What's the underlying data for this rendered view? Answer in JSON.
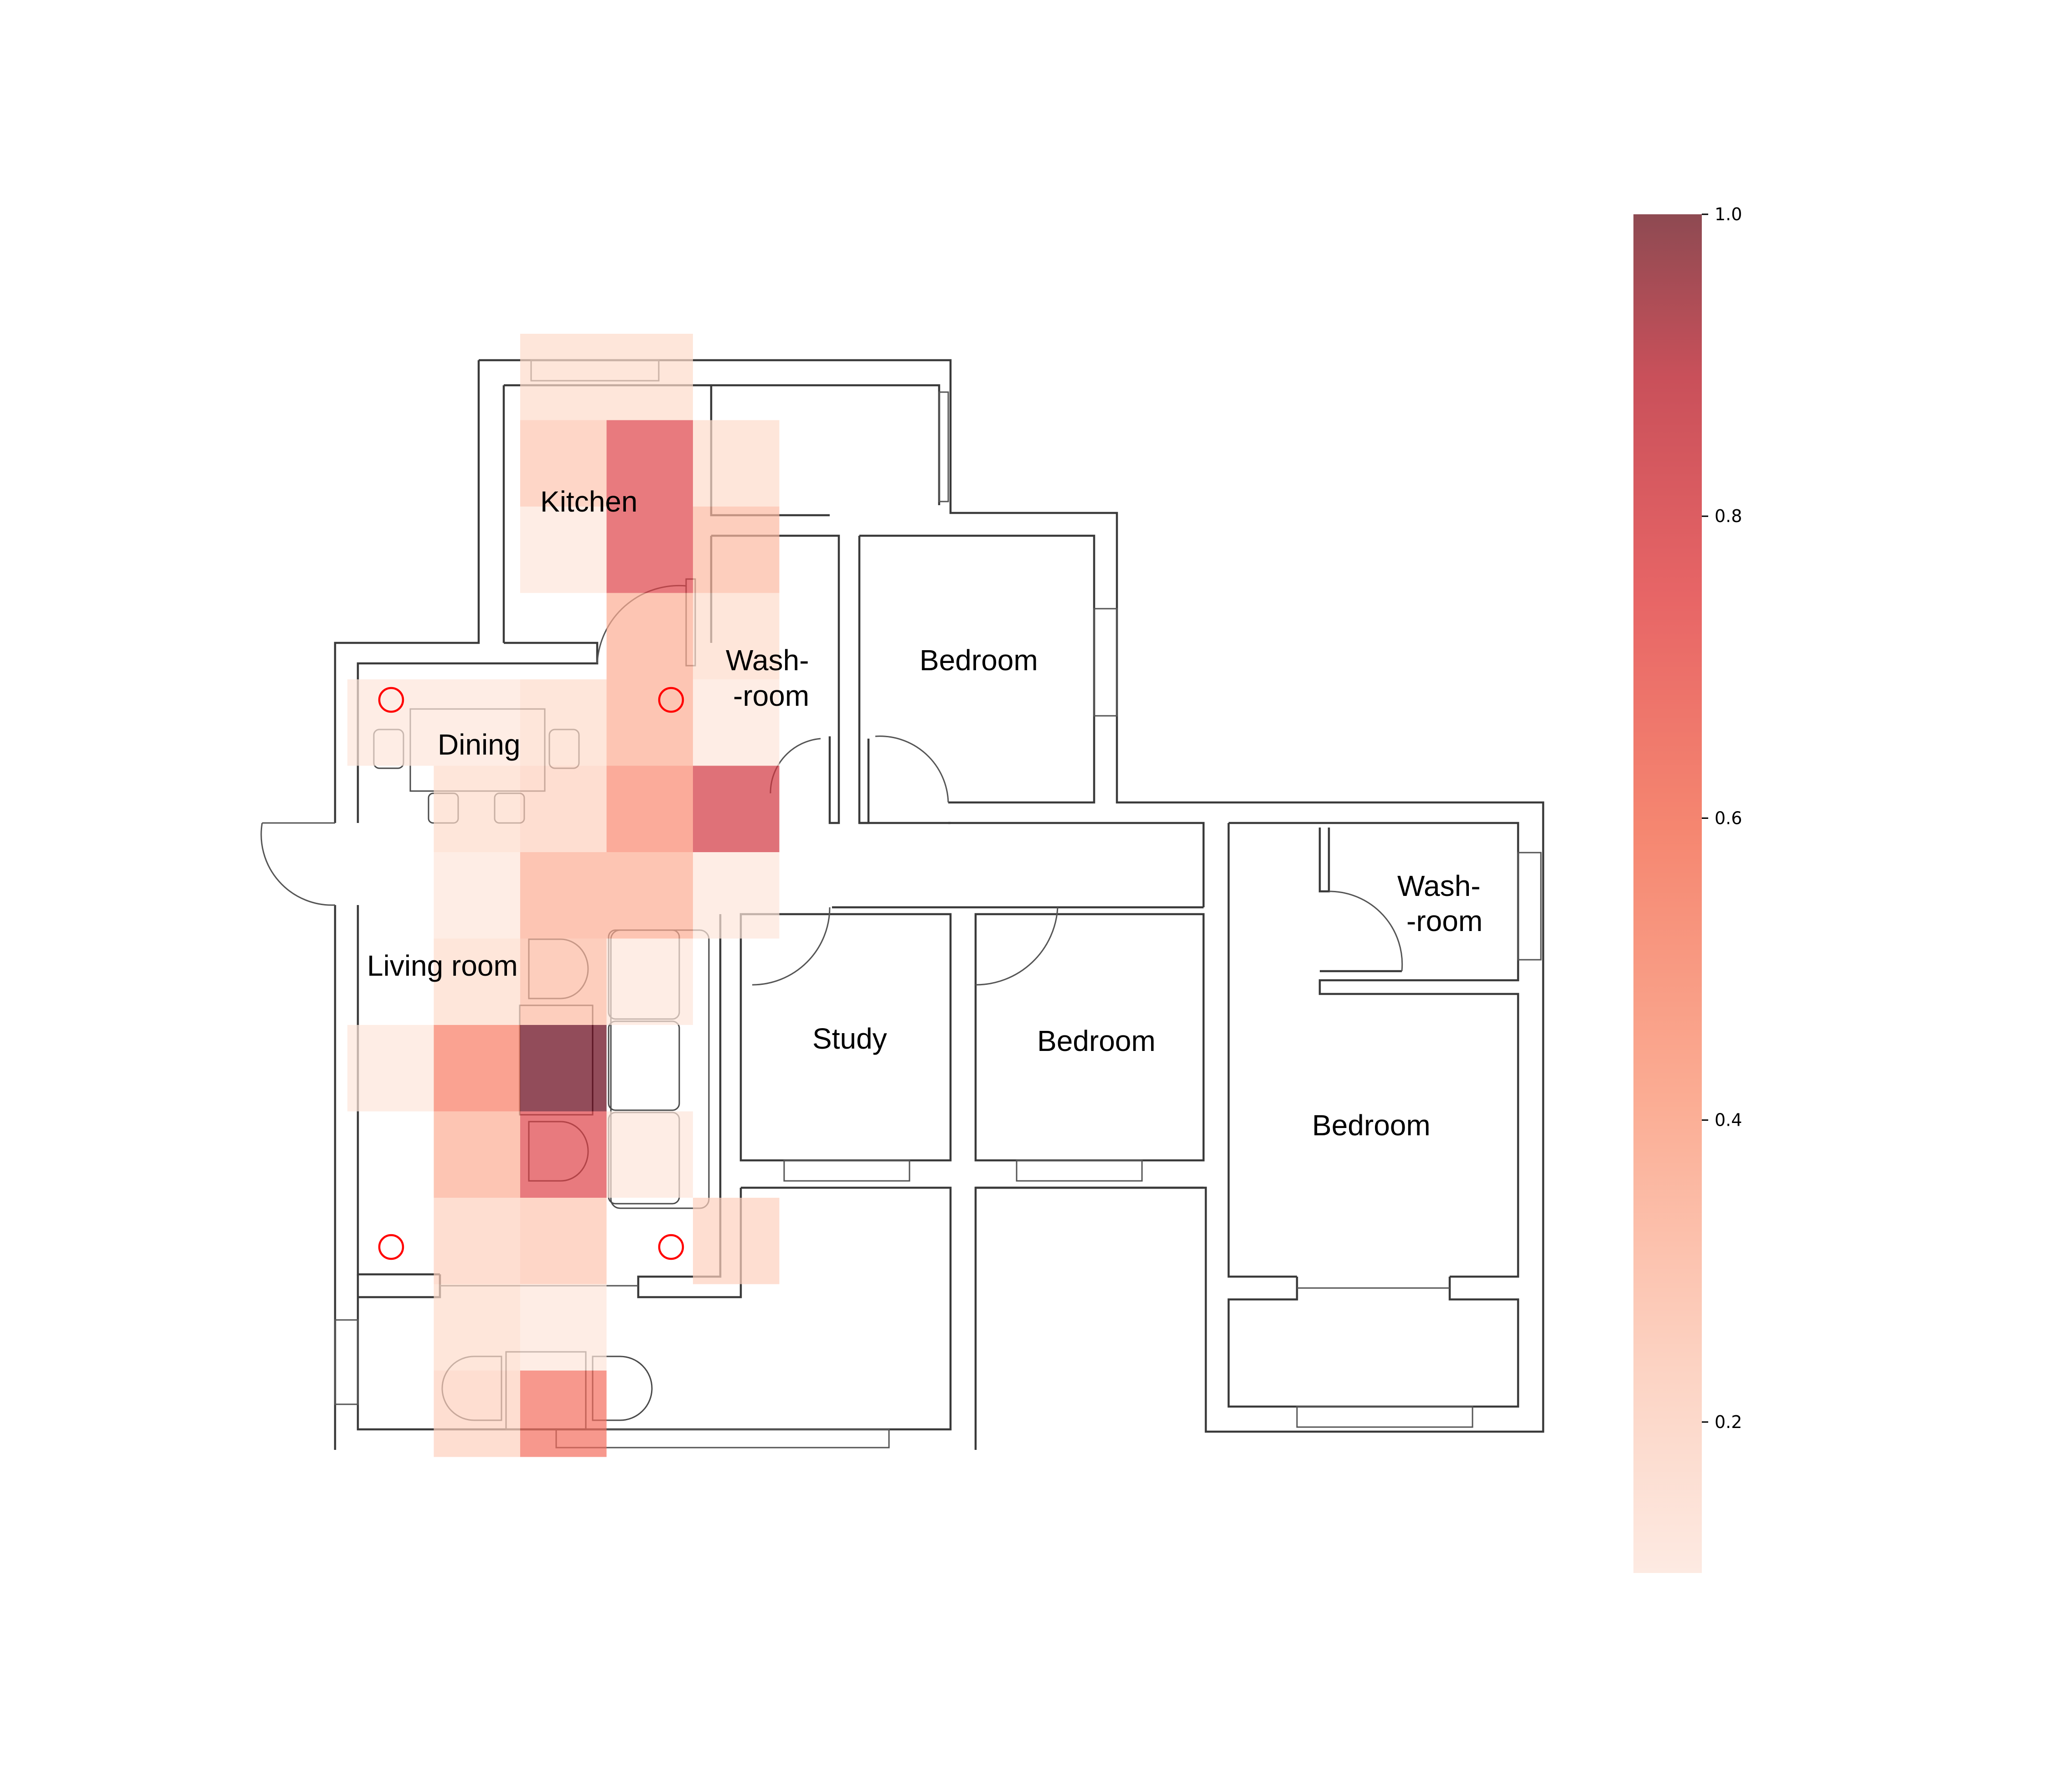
{
  "rooms": {
    "kitchen": "Kitchen",
    "washroom1_line1": "Wash-",
    "washroom1_line2": "-room",
    "bedroom1": "Bedroom",
    "dining": "Dining",
    "living": "Living room",
    "study": "Study",
    "bedroom2": "Bedroom",
    "washroom2_line1": "Wash-",
    "washroom2_line2": "-room",
    "bedroom3": "Bedroom"
  },
  "colorbar": {
    "min": 0.1,
    "max": 1.0,
    "ticks": [
      "0.2",
      "0.4",
      "0.6",
      "0.8",
      "1.0"
    ],
    "tick_values": [
      0.2,
      0.4,
      0.6,
      0.8,
      1.0
    ],
    "colormap": "Reds",
    "opacity": 0.7
  },
  "chart_data": {
    "type": "heatmap",
    "description_of_grid": "occupancy heat cells over floor plan; row/col indices refer to a uniform grid overlaid on the plan",
    "cells": [
      {
        "row": 0,
        "col": 2,
        "value": 0.2
      },
      {
        "row": 0,
        "col": 3,
        "value": 0.2
      },
      {
        "row": 1,
        "col": 2,
        "value": 0.3
      },
      {
        "row": 1,
        "col": 3,
        "value": 0.8
      },
      {
        "row": 1,
        "col": 4,
        "value": 0.2
      },
      {
        "row": 2,
        "col": 2,
        "value": 0.15
      },
      {
        "row": 2,
        "col": 3,
        "value": 0.8
      },
      {
        "row": 2,
        "col": 4,
        "value": 0.35
      },
      {
        "row": 3,
        "col": 3,
        "value": 0.4
      },
      {
        "row": 3,
        "col": 4,
        "value": 0.2
      },
      {
        "row": 4,
        "col": 0,
        "value": 0.15
      },
      {
        "row": 4,
        "col": 1,
        "value": 0.15
      },
      {
        "row": 4,
        "col": 2,
        "value": 0.2
      },
      {
        "row": 4,
        "col": 3,
        "value": 0.4
      },
      {
        "row": 4,
        "col": 4,
        "value": 0.15
      },
      {
        "row": 5,
        "col": 1,
        "value": 0.2
      },
      {
        "row": 5,
        "col": 2,
        "value": 0.25
      },
      {
        "row": 5,
        "col": 3,
        "value": 0.55
      },
      {
        "row": 5,
        "col": 4,
        "value": 0.85
      },
      {
        "row": 6,
        "col": 1,
        "value": 0.15
      },
      {
        "row": 6,
        "col": 2,
        "value": 0.4
      },
      {
        "row": 6,
        "col": 3,
        "value": 0.4
      },
      {
        "row": 6,
        "col": 4,
        "value": 0.15
      },
      {
        "row": 7,
        "col": 1,
        "value": 0.2
      },
      {
        "row": 7,
        "col": 2,
        "value": 0.35
      },
      {
        "row": 7,
        "col": 3,
        "value": 0.15
      },
      {
        "row": 8,
        "col": 0,
        "value": 0.15
      },
      {
        "row": 8,
        "col": 1,
        "value": 0.6
      },
      {
        "row": 8,
        "col": 2,
        "value": 1.0
      },
      {
        "row": 9,
        "col": 1,
        "value": 0.4
      },
      {
        "row": 9,
        "col": 2,
        "value": 0.8
      },
      {
        "row": 9,
        "col": 3,
        "value": 0.15
      },
      {
        "row": 10,
        "col": 1,
        "value": 0.25
      },
      {
        "row": 10,
        "col": 2,
        "value": 0.3
      },
      {
        "row": 10,
        "col": 4,
        "value": 0.25
      },
      {
        "row": 11,
        "col": 1,
        "value": 0.2
      },
      {
        "row": 11,
        "col": 2,
        "value": 0.15
      },
      {
        "row": 12,
        "col": 1,
        "value": 0.25
      },
      {
        "row": 12,
        "col": 2,
        "value": 0.65
      }
    ]
  }
}
